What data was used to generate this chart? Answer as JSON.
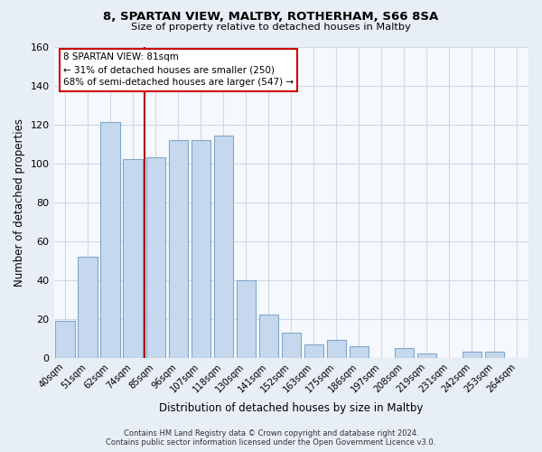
{
  "title": "8, SPARTAN VIEW, MALTBY, ROTHERHAM, S66 8SA",
  "subtitle": "Size of property relative to detached houses in Maltby",
  "xlabel": "Distribution of detached houses by size in Maltby",
  "ylabel": "Number of detached properties",
  "footer_line1": "Contains HM Land Registry data © Crown copyright and database right 2024.",
  "footer_line2": "Contains public sector information licensed under the Open Government Licence v3.0.",
  "bar_labels": [
    "40sqm",
    "51sqm",
    "62sqm",
    "74sqm",
    "85sqm",
    "96sqm",
    "107sqm",
    "118sqm",
    "130sqm",
    "141sqm",
    "152sqm",
    "163sqm",
    "175sqm",
    "186sqm",
    "197sqm",
    "208sqm",
    "219sqm",
    "231sqm",
    "242sqm",
    "253sqm",
    "264sqm"
  ],
  "bar_values": [
    19,
    52,
    121,
    102,
    103,
    112,
    112,
    114,
    40,
    22,
    13,
    7,
    9,
    6,
    0,
    5,
    2,
    0,
    3,
    3,
    0
  ],
  "bar_color": "#c5d8ed",
  "bar_edge_color": "#7fa8cc",
  "vline_color": "#aa0000",
  "annotation_title": "8 SPARTAN VIEW: 81sqm",
  "annotation_line1": "← 31% of detached houses are smaller (250)",
  "annotation_line2": "68% of semi-detached houses are larger (547) →",
  "annotation_box_facecolor": "#ffffff",
  "annotation_box_edgecolor": "#cc0000",
  "ylim": [
    0,
    160
  ],
  "yticks": [
    0,
    20,
    40,
    60,
    80,
    100,
    120,
    140,
    160
  ],
  "bg_color": "#e8eef6",
  "plot_bg_color": "#f5f8fd",
  "grid_color": "#d0d8e8"
}
